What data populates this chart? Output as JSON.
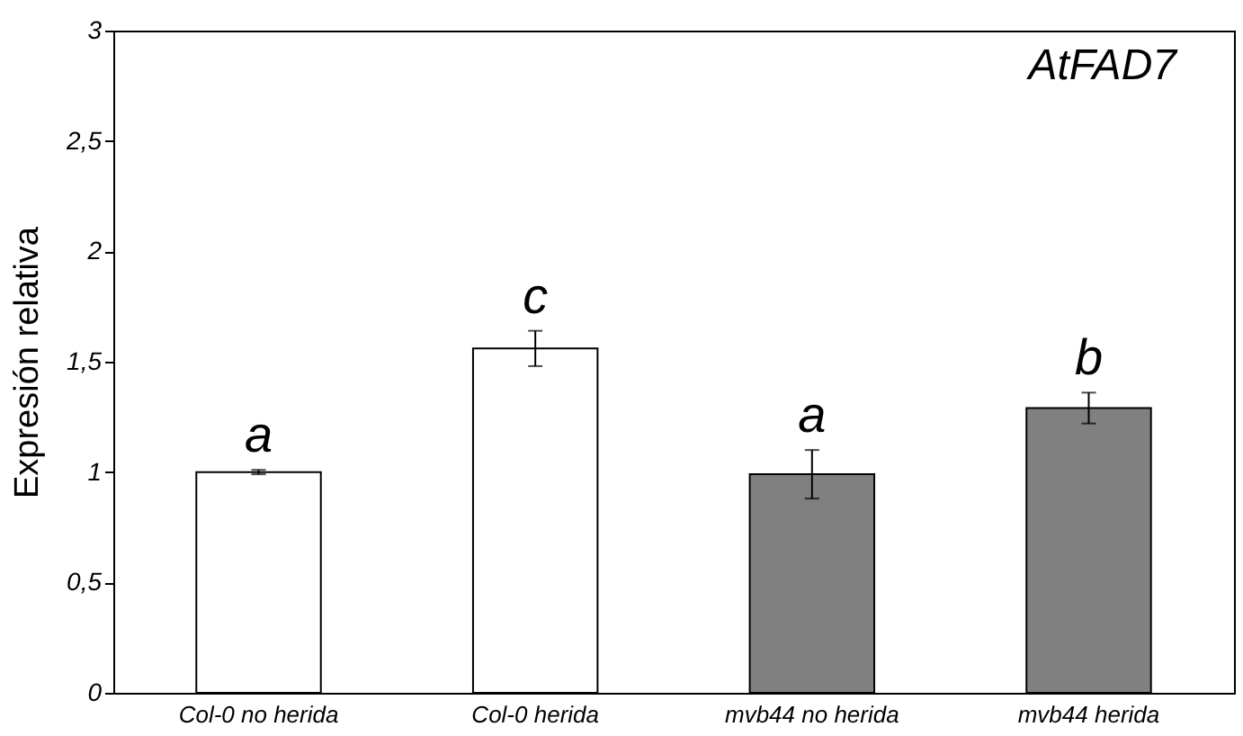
{
  "chart_data": {
    "type": "bar",
    "title": "AtFAD7",
    "ylabel": "Expresión relativa",
    "categories": [
      "Col-0 no herida",
      "Col-0 herida",
      "mvb44 no herida",
      "mvb44 herida"
    ],
    "values": [
      1.0,
      1.56,
      0.99,
      1.29
    ],
    "errors": [
      0.01,
      0.08,
      0.11,
      0.07
    ],
    "colors": [
      "#ffffff",
      "#ffffff",
      "#808080",
      "#808080"
    ],
    "ylim": [
      0,
      3
    ],
    "yticks": [
      0,
      {
        "value": 0.5,
        "label": "0,5"
      },
      1,
      {
        "value": 1.5,
        "label": "1,5"
      },
      2,
      {
        "value": 2.5,
        "label": "2,5"
      },
      3
    ],
    "annotations": [
      {
        "text": "a",
        "x": "Col-0 no herida",
        "y": 1.01
      },
      {
        "text": "c",
        "x": "Col-0 herida",
        "y": 1.64
      },
      {
        "text": "a",
        "x": "mvb44 no herida",
        "y": 1.1
      },
      {
        "text": "b",
        "x": "mvb44 herida",
        "y": 1.36
      }
    ],
    "grid": false
  }
}
